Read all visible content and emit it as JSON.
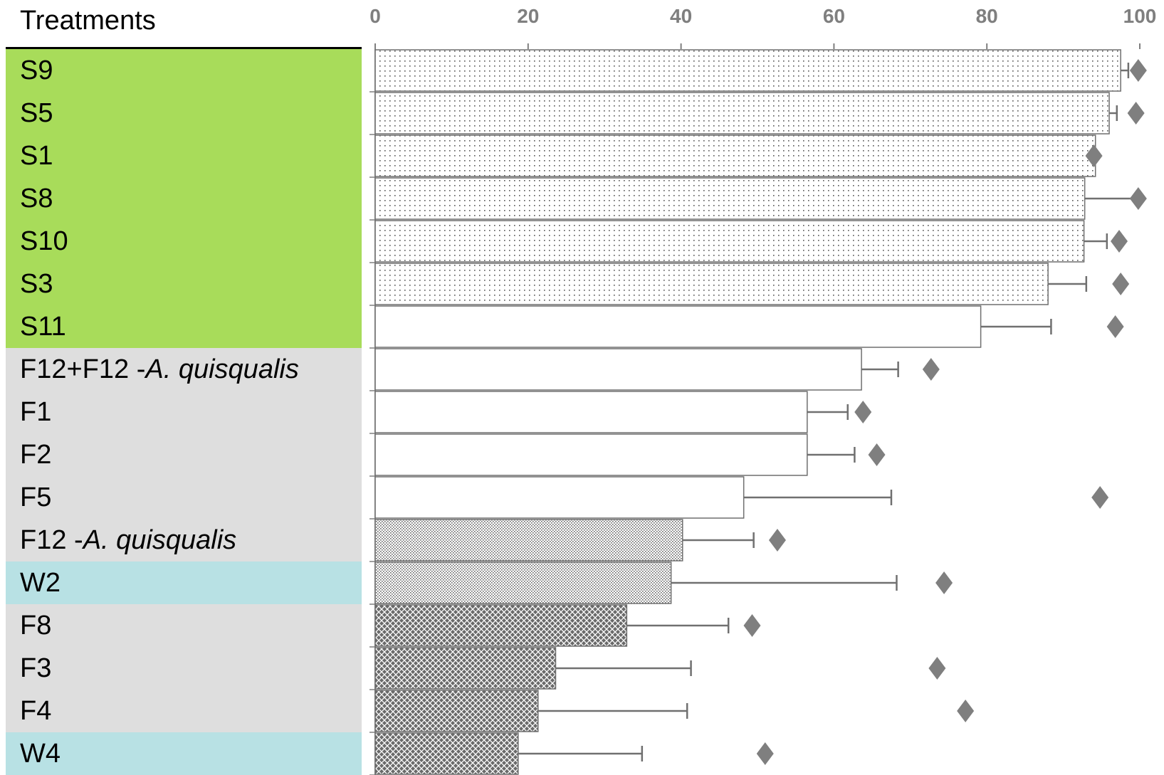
{
  "chart_data": {
    "type": "bar",
    "orientation": "horizontal",
    "header": "Treatments",
    "xlim": [
      0,
      100
    ],
    "xticks": [
      "0",
      "20",
      "40",
      "60",
      "80",
      "100"
    ],
    "rows": [
      {
        "parts": [
          {
            "t": "S9"
          }
        ],
        "group": "S",
        "value": 97.5,
        "err": 1.0,
        "diamond": 99.8,
        "pattern": "dots"
      },
      {
        "parts": [
          {
            "t": "S5"
          }
        ],
        "group": "S",
        "value": 96.0,
        "err": 1.0,
        "diamond": 99.5,
        "pattern": "dots"
      },
      {
        "parts": [
          {
            "t": "S1"
          }
        ],
        "group": "S",
        "value": 94.2,
        "err": 0,
        "diamond": 94.0,
        "pattern": "dots"
      },
      {
        "parts": [
          {
            "t": "S8"
          }
        ],
        "group": "S",
        "value": 92.8,
        "err": 7.0,
        "diamond": 99.8,
        "pattern": "dots"
      },
      {
        "parts": [
          {
            "t": "S10"
          }
        ],
        "group": "S",
        "value": 92.7,
        "err": 3.0,
        "diamond": 97.3,
        "pattern": "dots"
      },
      {
        "parts": [
          {
            "t": "S3"
          }
        ],
        "group": "S",
        "value": 88.0,
        "err": 5.0,
        "diamond": 97.5,
        "pattern": "dots"
      },
      {
        "parts": [
          {
            "t": "S11"
          }
        ],
        "group": "S",
        "value": 79.2,
        "err": 9.2,
        "diamond": 96.8,
        "pattern": "none"
      },
      {
        "parts": [
          {
            "t": "F12+F12 - "
          },
          {
            "t": "A. quisqualis",
            "i": true
          }
        ],
        "group": "F",
        "value": 63.6,
        "err": 4.8,
        "diamond": 72.7,
        "pattern": "none"
      },
      {
        "parts": [
          {
            "t": "F1"
          }
        ],
        "group": "F",
        "value": 56.5,
        "err": 5.3,
        "diamond": 63.8,
        "pattern": "none"
      },
      {
        "parts": [
          {
            "t": "F2"
          }
        ],
        "group": "F",
        "value": 56.5,
        "err": 6.2,
        "diamond": 65.6,
        "pattern": "none"
      },
      {
        "parts": [
          {
            "t": "F5"
          }
        ],
        "group": "F",
        "value": 48.2,
        "err": 19.3,
        "diamond": 94.8,
        "pattern": "none"
      },
      {
        "parts": [
          {
            "t": "F12 - "
          },
          {
            "t": "A. quisqualis",
            "i": true
          }
        ],
        "group": "F",
        "value": 40.2,
        "err": 9.3,
        "diamond": 52.6,
        "pattern": "fine"
      },
      {
        "parts": [
          {
            "t": "W2"
          }
        ],
        "group": "W",
        "value": 38.7,
        "err": 29.5,
        "diamond": 74.4,
        "pattern": "fine"
      },
      {
        "parts": [
          {
            "t": "F8"
          }
        ],
        "group": "F",
        "value": 32.9,
        "err": 13.3,
        "diamond": 49.3,
        "pattern": "cross"
      },
      {
        "parts": [
          {
            "t": "F3"
          }
        ],
        "group": "F",
        "value": 23.6,
        "err": 17.7,
        "diamond": 73.5,
        "pattern": "cross"
      },
      {
        "parts": [
          {
            "t": "F4"
          }
        ],
        "group": "F",
        "value": 21.3,
        "err": 19.5,
        "diamond": 77.2,
        "pattern": "cross"
      },
      {
        "parts": [
          {
            "t": "W4"
          }
        ],
        "group": "W",
        "value": 18.7,
        "err": 16.2,
        "diamond": 51.0,
        "pattern": "cross"
      }
    ]
  },
  "colors": {
    "group_S": "#a8dc5a",
    "group_F": "#dedede",
    "group_W": "#b8e1e4",
    "axis": "#7f7f7f",
    "bar_outline": "#6f6f6f",
    "error_bar": "#707070",
    "diamond": "#7f7f7f"
  }
}
